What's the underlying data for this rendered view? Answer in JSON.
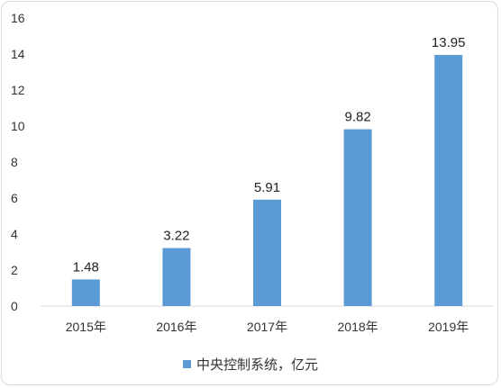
{
  "chart_data": {
    "type": "bar",
    "categories": [
      "2015年",
      "2016年",
      "2017年",
      "2018年",
      "2019年"
    ],
    "series": [
      {
        "name": "中央控制系统，亿元",
        "values": [
          1.48,
          3.22,
          5.91,
          9.82,
          13.95
        ],
        "color": "#5b9bd5"
      }
    ],
    "data_labels": [
      "1.48",
      "3.22",
      "5.91",
      "9.82",
      "13.95"
    ],
    "y_ticks": [
      0,
      2,
      4,
      6,
      8,
      10,
      12,
      14,
      16
    ],
    "ylim": [
      0,
      16
    ],
    "grid": false,
    "legend_position": "bottom"
  }
}
